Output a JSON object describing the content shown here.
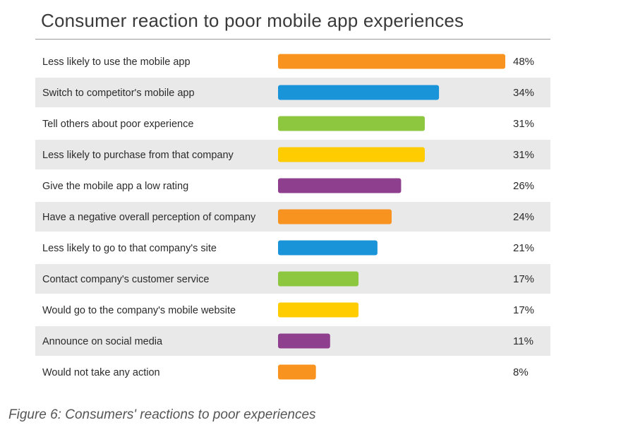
{
  "title": "Consumer reaction to poor mobile app experiences",
  "caption": "Figure 6: Consumers' reactions to poor experiences",
  "chart_data": {
    "type": "bar",
    "orientation": "horizontal",
    "title": "Consumer reaction to poor mobile app experiences",
    "categories": [
      "Less likely to use the mobile app",
      "Switch to competitor's mobile app",
      "Tell others about poor experience",
      "Less likely to purchase from that company",
      "Give the mobile app a low rating",
      "Have a negative overall perception of company",
      "Less likely to go to that company's site",
      "Contact company's customer service",
      "Would go to the company's mobile website",
      "Announce on social media",
      "Would not take any action"
    ],
    "values": [
      48,
      34,
      31,
      31,
      26,
      24,
      21,
      17,
      17,
      11,
      8
    ],
    "value_labels": [
      "48%",
      "34%",
      "31%",
      "31%",
      "26%",
      "24%",
      "21%",
      "17%",
      "17%",
      "11%",
      "8%"
    ],
    "colors": [
      "#f7931e",
      "#1a94d8",
      "#8dc63f",
      "#ffcc00",
      "#8e3f8e",
      "#f7931e",
      "#1a94d8",
      "#8dc63f",
      "#ffcc00",
      "#8e3f8e",
      "#f7931e"
    ],
    "stripe_color": "#e9e9ea",
    "xlim": [
      0,
      48
    ],
    "grid": false,
    "legend": "none"
  }
}
